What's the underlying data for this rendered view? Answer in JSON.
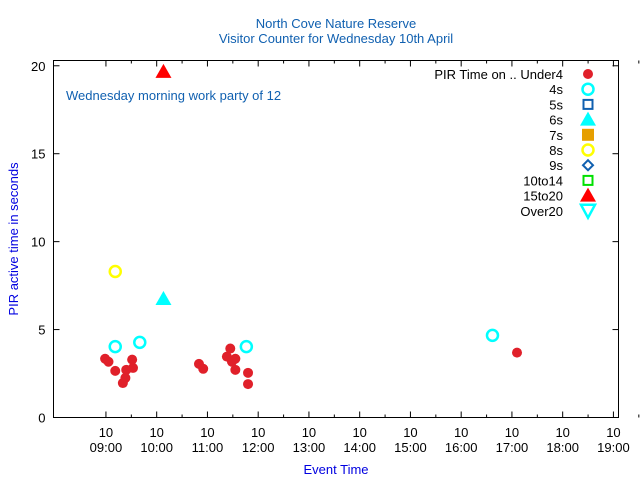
{
  "chart_data": {
    "type": "scatter",
    "title": [
      "North Cove Nature Reserve",
      "Visitor Counter for Wednesday 10th April"
    ],
    "xlabel": "Event Time",
    "ylabel": "PIR active time in seconds",
    "xlim": [
      "07:58",
      "19:06"
    ],
    "ylim": [
      0,
      20.3
    ],
    "yticks": [
      0,
      5,
      10,
      15,
      20
    ],
    "xticks": [
      {
        "day": "10",
        "time": "09:00"
      },
      {
        "day": "10",
        "time": "10:00"
      },
      {
        "day": "10",
        "time": "11:00"
      },
      {
        "day": "10",
        "time": "12:00"
      },
      {
        "day": "10",
        "time": "13:00"
      },
      {
        "day": "10",
        "time": "14:00"
      },
      {
        "day": "10",
        "time": "15:00"
      },
      {
        "day": "10",
        "time": "16:00"
      },
      {
        "day": "10",
        "time": "17:00"
      },
      {
        "day": "10",
        "time": "18:00"
      },
      {
        "day": "10",
        "time": "19:00"
      }
    ],
    "annotation": "Wednesday morning work party of 12",
    "legend_title": "PIR Time on ..",
    "legend_position": "top-right",
    "series": [
      {
        "name": "Under4",
        "marker": "filled-circle",
        "color": "#e0202a",
        "points": [
          [
            "08:59",
            3.34
          ],
          [
            "09:03",
            3.17
          ],
          [
            "09:11",
            2.65
          ],
          [
            "09:20",
            1.96
          ],
          [
            "09:23",
            2.25
          ],
          [
            "09:24",
            2.71
          ],
          [
            "09:31",
            3.29
          ],
          [
            "09:32",
            2.82
          ],
          [
            "10:50",
            3.05
          ],
          [
            "10:55",
            2.77
          ],
          [
            "11:23",
            3.46
          ],
          [
            "11:27",
            3.92
          ],
          [
            "11:29",
            3.17
          ],
          [
            "11:33",
            3.34
          ],
          [
            "11:33",
            2.71
          ],
          [
            "11:48",
            2.54
          ],
          [
            "11:48",
            1.9
          ],
          [
            "17:06",
            3.69
          ]
        ]
      },
      {
        "name": "4s",
        "marker": "open-circle",
        "color": "#00ffff",
        "points": [
          [
            "09:11",
            4.03
          ],
          [
            "09:40",
            4.27
          ],
          [
            "11:46",
            4.03
          ],
          [
            "16:37",
            4.67
          ]
        ]
      },
      {
        "name": "5s",
        "marker": "open-square",
        "color": "#1060b0",
        "points": []
      },
      {
        "name": "6s",
        "marker": "filled-triangle",
        "color": "#00ffff",
        "points": [
          [
            "10:08",
            6.74
          ]
        ]
      },
      {
        "name": "7s",
        "marker": "filled-square",
        "color": "#e69f00",
        "points": []
      },
      {
        "name": "8s",
        "marker": "open-circle",
        "color": "#ffff00",
        "points": [
          [
            "09:11",
            8.3
          ]
        ]
      },
      {
        "name": "9s",
        "marker": "open-diamond",
        "color": "#1060b0",
        "points": []
      },
      {
        "name": "10to14",
        "marker": "open-square",
        "color": "#00e000",
        "points": []
      },
      {
        "name": "15to20",
        "marker": "filled-triangle",
        "color": "#ff0000",
        "points": [
          [
            "10:08",
            19.65
          ]
        ]
      },
      {
        "name": "Over20",
        "marker": "open-triangle-down",
        "color": "#00ffff",
        "points": []
      }
    ]
  }
}
